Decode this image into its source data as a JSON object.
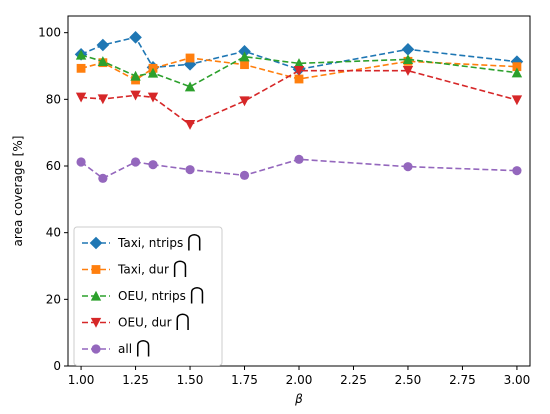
{
  "chart_data": {
    "type": "line",
    "xlabel": "β",
    "ylabel": "area coverage  [%]",
    "xlim": [
      0.94,
      3.06
    ],
    "ylim": [
      0,
      105
    ],
    "xticks": [
      1.0,
      1.25,
      1.5,
      1.75,
      2.0,
      2.25,
      2.5,
      2.75,
      3.0
    ],
    "xtick_labels": [
      "1.00",
      "1.25",
      "1.50",
      "1.75",
      "2.00",
      "2.25",
      "2.50",
      "2.75",
      "3.00"
    ],
    "yticks": [
      0,
      20,
      40,
      60,
      80,
      100
    ],
    "ytick_labels": [
      "0",
      "20",
      "40",
      "60",
      "80",
      "100"
    ],
    "x": [
      1.0,
      1.1,
      1.25,
      1.33,
      1.5,
      1.75,
      2.0,
      2.5,
      3.0
    ],
    "grid": false,
    "legend_position": "lower-left",
    "intersection_symbol": "⋂",
    "series": [
      {
        "name": "Taxi, ntrips",
        "color": "#1f77b4",
        "marker": "diamond",
        "values": [
          93.5,
          96.3,
          98.6,
          89.6,
          90.5,
          94.4,
          89.0,
          95.0,
          91.3
        ]
      },
      {
        "name": "Taxi, dur",
        "color": "#ff7f0e",
        "marker": "square",
        "values": [
          89.3,
          91.0,
          85.8,
          89.3,
          92.4,
          90.4,
          86.1,
          91.4,
          89.8
        ]
      },
      {
        "name": "OEU, ntrips",
        "color": "#2ca02c",
        "marker": "triangle-up",
        "values": [
          93.3,
          91.4,
          87.0,
          87.9,
          83.8,
          92.8,
          90.8,
          92.0,
          88.0
        ]
      },
      {
        "name": "OEU, dur",
        "color": "#d62728",
        "marker": "triangle-down",
        "values": [
          80.6,
          80.1,
          81.2,
          80.6,
          72.4,
          79.5,
          88.6,
          88.6,
          79.8
        ]
      },
      {
        "name": "all",
        "color": "#9467bd",
        "marker": "circle",
        "values": [
          61.2,
          56.3,
          61.2,
          60.4,
          58.9,
          57.2,
          62.0,
          59.8,
          58.6
        ]
      }
    ]
  }
}
